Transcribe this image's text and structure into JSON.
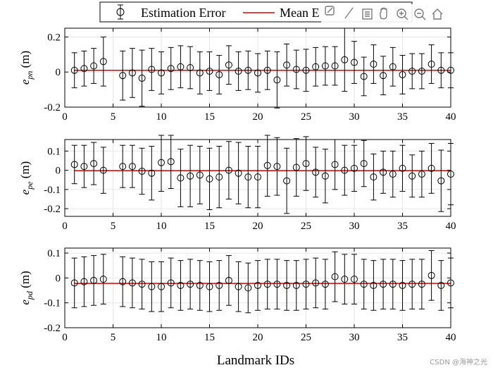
{
  "chart_data": {
    "type": "errorbar",
    "legend": {
      "placement": "top",
      "entries": [
        {
          "label": "Estimation Error",
          "marker": "circle-errorbar",
          "color": "#000000"
        },
        {
          "label": "Mean E",
          "marker": "line",
          "color": "#dd0000"
        }
      ]
    },
    "xlabel": "Landmark IDs",
    "xlim": [
      0,
      40
    ],
    "xticks": [
      0,
      5,
      10,
      15,
      20,
      25,
      30,
      35,
      40
    ],
    "grid": true,
    "colors": {
      "markers": "#000000",
      "mean_line": "#dd0000",
      "grid": "#e6e6e6"
    },
    "subplots": [
      {
        "ylabel_main": "e",
        "ylabel_sub": "pn",
        "ylabel_unit": "(m)",
        "ylim": [
          -0.2,
          0.25
        ],
        "yticks": [
          -0.2,
          0,
          0.2
        ],
        "ytick_labels": [
          "-0.2",
          "0",
          "0.2"
        ],
        "mean": 0.01,
        "x": [
          1,
          2,
          3,
          4,
          6,
          7,
          8,
          9,
          10,
          11,
          12,
          13,
          14,
          15,
          16,
          17,
          18,
          19,
          20,
          21,
          22,
          23,
          24,
          25,
          26,
          27,
          28,
          29,
          30,
          31,
          32,
          33,
          34,
          35,
          36,
          37,
          38,
          39,
          40
        ],
        "y": [
          0.01,
          0.02,
          0.035,
          0.06,
          -0.02,
          -0.005,
          -0.035,
          0.015,
          -0.005,
          0.02,
          0.03,
          0.025,
          -0.005,
          0.005,
          -0.015,
          0.04,
          0.005,
          0.01,
          -0.005,
          0.01,
          -0.045,
          0.04,
          0.015,
          0.01,
          0.03,
          0.035,
          0.035,
          0.07,
          0.055,
          -0.025,
          0.045,
          -0.02,
          0.03,
          -0.015,
          0.005,
          0.005,
          0.045,
          0.01,
          0.01
        ],
        "err": [
          0.1,
          0.1,
          0.1,
          0.14,
          0.14,
          0.14,
          0.16,
          0.12,
          0.12,
          0.12,
          0.12,
          0.12,
          0.12,
          0.11,
          0.11,
          0.11,
          0.11,
          0.11,
          0.11,
          0.11,
          0.16,
          0.12,
          0.11,
          0.12,
          0.11,
          0.11,
          0.11,
          0.18,
          0.12,
          0.11,
          0.11,
          0.11,
          0.11,
          0.11,
          0.1,
          0.1,
          0.11,
          0.1,
          0.1
        ]
      },
      {
        "ylabel_main": "e",
        "ylabel_sub": "pe",
        "ylabel_unit": "(m)",
        "ylim": [
          -0.24,
          0.16
        ],
        "yticks": [
          -0.2,
          -0.1,
          0,
          0.1
        ],
        "ytick_labels": [
          "-0.2",
          "-0.1",
          "0",
          "0.1"
        ],
        "mean": -0.002,
        "x": [
          1,
          2,
          3,
          4,
          6,
          7,
          8,
          9,
          10,
          11,
          12,
          13,
          14,
          15,
          16,
          17,
          18,
          19,
          20,
          21,
          22,
          23,
          24,
          25,
          26,
          27,
          28,
          29,
          30,
          31,
          32,
          33,
          34,
          35,
          36,
          37,
          38,
          39,
          40
        ],
        "y": [
          0.03,
          0.02,
          0.035,
          0.0,
          0.02,
          0.02,
          -0.005,
          -0.015,
          0.04,
          0.045,
          -0.04,
          -0.03,
          -0.025,
          -0.045,
          -0.035,
          0.0,
          -0.015,
          -0.035,
          -0.035,
          0.025,
          0.02,
          -0.055,
          0.015,
          0.035,
          -0.01,
          -0.03,
          0.03,
          0.0,
          0.01,
          0.035,
          -0.035,
          -0.01,
          -0.02,
          0.01,
          -0.03,
          -0.02,
          0.01,
          -0.055,
          -0.02
        ],
        "err": [
          0.1,
          0.11,
          0.11,
          0.12,
          0.11,
          0.11,
          0.12,
          0.14,
          0.15,
          0.14,
          0.15,
          0.16,
          0.15,
          0.16,
          0.16,
          0.15,
          0.16,
          0.16,
          0.16,
          0.16,
          0.15,
          0.17,
          0.15,
          0.14,
          0.13,
          0.14,
          0.13,
          0.13,
          0.12,
          0.12,
          0.12,
          0.11,
          0.12,
          0.12,
          0.11,
          0.12,
          0.13,
          0.16,
          0.16
        ]
      },
      {
        "ylabel_main": "e",
        "ylabel_sub": "pd",
        "ylabel_unit": "(m)",
        "ylim": [
          -0.2,
          0.12
        ],
        "yticks": [
          -0.2,
          -0.1,
          0,
          0.1
        ],
        "ytick_labels": [
          "-0.2",
          "-0.1",
          "0",
          "0.1"
        ],
        "mean": -0.022,
        "x": [
          1,
          2,
          3,
          4,
          6,
          7,
          8,
          9,
          10,
          11,
          12,
          13,
          14,
          15,
          16,
          17,
          18,
          19,
          20,
          21,
          22,
          23,
          24,
          25,
          26,
          27,
          28,
          29,
          30,
          31,
          32,
          33,
          34,
          35,
          36,
          37,
          38,
          39,
          40
        ],
        "y": [
          -0.02,
          -0.015,
          -0.01,
          -0.005,
          -0.015,
          -0.02,
          -0.025,
          -0.035,
          -0.035,
          -0.02,
          -0.03,
          -0.025,
          -0.03,
          -0.035,
          -0.03,
          -0.01,
          -0.035,
          -0.04,
          -0.03,
          -0.025,
          -0.025,
          -0.03,
          -0.03,
          -0.025,
          -0.02,
          -0.025,
          0.005,
          -0.005,
          -0.005,
          -0.025,
          -0.03,
          -0.025,
          -0.025,
          -0.03,
          -0.025,
          -0.025,
          0.01,
          -0.03,
          -0.02
        ],
        "err": [
          0.1,
          0.1,
          0.1,
          0.1,
          0.1,
          0.1,
          0.1,
          0.1,
          0.1,
          0.1,
          0.1,
          0.1,
          0.1,
          0.1,
          0.1,
          0.1,
          0.1,
          0.1,
          0.1,
          0.1,
          0.1,
          0.1,
          0.1,
          0.1,
          0.1,
          0.1,
          0.1,
          0.1,
          0.1,
          0.1,
          0.1,
          0.1,
          0.1,
          0.1,
          0.1,
          0.1,
          0.1,
          0.1,
          0.1
        ]
      }
    ]
  },
  "toolbar": {
    "icons": [
      "data-tips-icon",
      "brush-icon",
      "legend-icon",
      "pan-hand-icon",
      "zoom-in-icon",
      "zoom-out-icon",
      "home-icon"
    ]
  },
  "watermark": "CSDN @海神之光"
}
